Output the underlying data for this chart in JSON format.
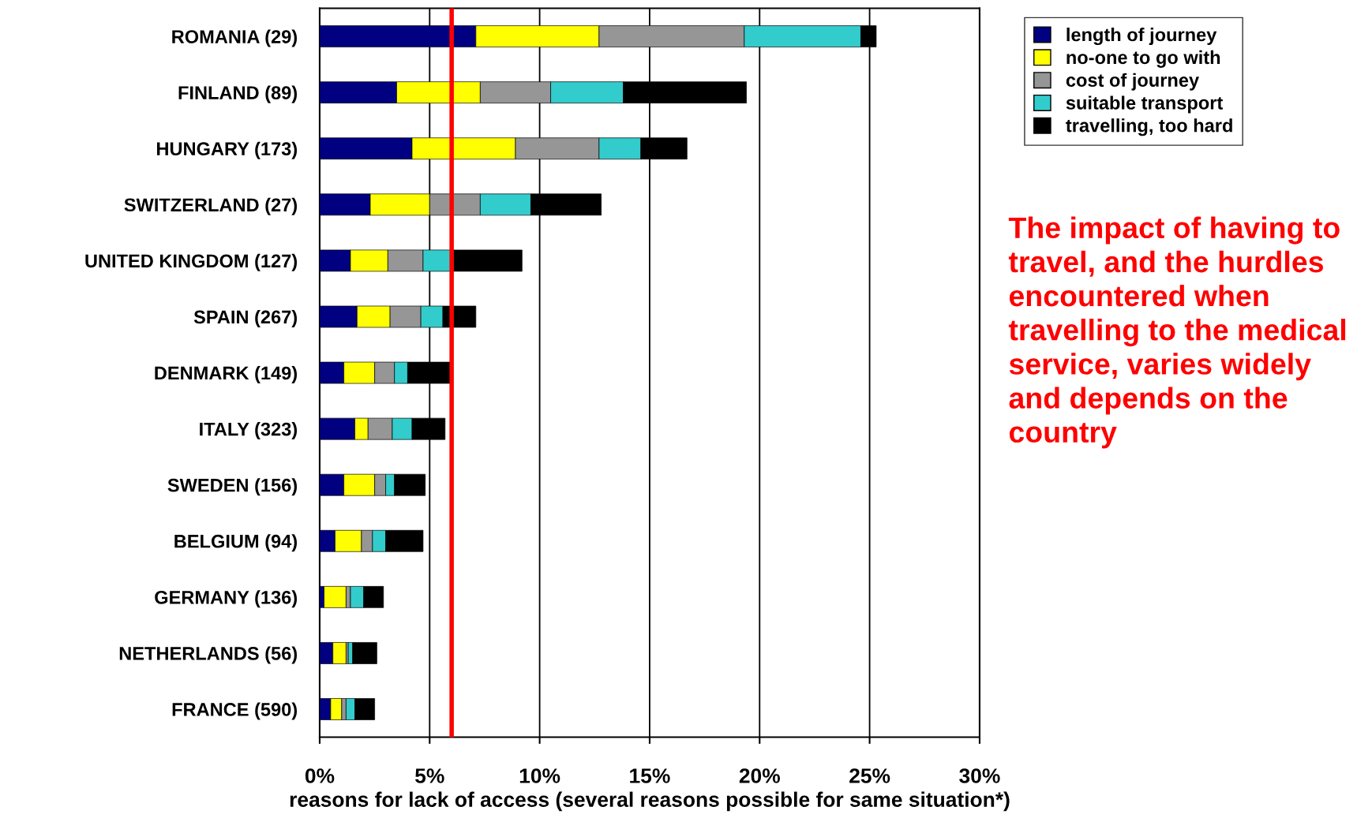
{
  "chart_data": {
    "type": "bar",
    "orientation": "horizontal",
    "stacked": true,
    "categories": [
      "ROMANIA (29)",
      "FINLAND (89)",
      "HUNGARY (173)",
      "SWITZERLAND (27)",
      "UNITED KINGDOM (127)",
      "SPAIN (267)",
      "DENMARK (149)",
      "ITALY (323)",
      "SWEDEN (156)",
      "BELGIUM (94)",
      "GERMANY (136)",
      "NETHERLANDS (56)",
      "FRANCE (590)"
    ],
    "series": [
      {
        "name": "length of journey",
        "color": "#000080",
        "values": [
          7.1,
          3.5,
          4.2,
          2.3,
          1.4,
          1.7,
          1.1,
          1.6,
          1.1,
          0.7,
          0.2,
          0.6,
          0.5
        ]
      },
      {
        "name": "no-one to go with",
        "color": "#ffff00",
        "values": [
          5.6,
          3.8,
          4.7,
          2.7,
          1.7,
          1.5,
          1.4,
          0.6,
          1.4,
          1.2,
          1.0,
          0.6,
          0.5
        ]
      },
      {
        "name": "cost of journey",
        "color": "#969696",
        "values": [
          6.6,
          3.2,
          3.8,
          2.3,
          1.6,
          1.4,
          0.9,
          1.1,
          0.5,
          0.5,
          0.2,
          0.1,
          0.2
        ]
      },
      {
        "name": "suitable transport",
        "color": "#33cccc",
        "values": [
          5.3,
          3.3,
          1.9,
          2.3,
          1.4,
          1.0,
          0.6,
          0.9,
          0.4,
          0.6,
          0.6,
          0.2,
          0.4
        ]
      },
      {
        "name": "travelling, too hard",
        "color": "#000000",
        "values": [
          0.7,
          5.6,
          2.1,
          3.2,
          3.1,
          1.5,
          2.0,
          1.5,
          1.4,
          1.7,
          0.9,
          1.1,
          0.9
        ]
      }
    ],
    "xlim": [
      0,
      30
    ],
    "xticks": [
      {
        "value": 0,
        "label": "0%"
      },
      {
        "value": 5,
        "label": "5%"
      },
      {
        "value": 10,
        "label": "10%"
      },
      {
        "value": 15,
        "label": "15%"
      },
      {
        "value": 20,
        "label": "20%"
      },
      {
        "value": 25,
        "label": "25%"
      },
      {
        "value": 30,
        "label": "30%"
      }
    ],
    "xlabel": "reasons for lack of access (several reasons possible for same situation*)",
    "ref_lines": [
      {
        "axis": "x",
        "value": 6.0,
        "color": "#ff0000"
      }
    ],
    "grid": "x",
    "legend": "top right",
    "annotations": [
      "The impact of having to travel, and the hurdles encountered when travelling to the medical service, varies widely and depends on the country"
    ]
  }
}
